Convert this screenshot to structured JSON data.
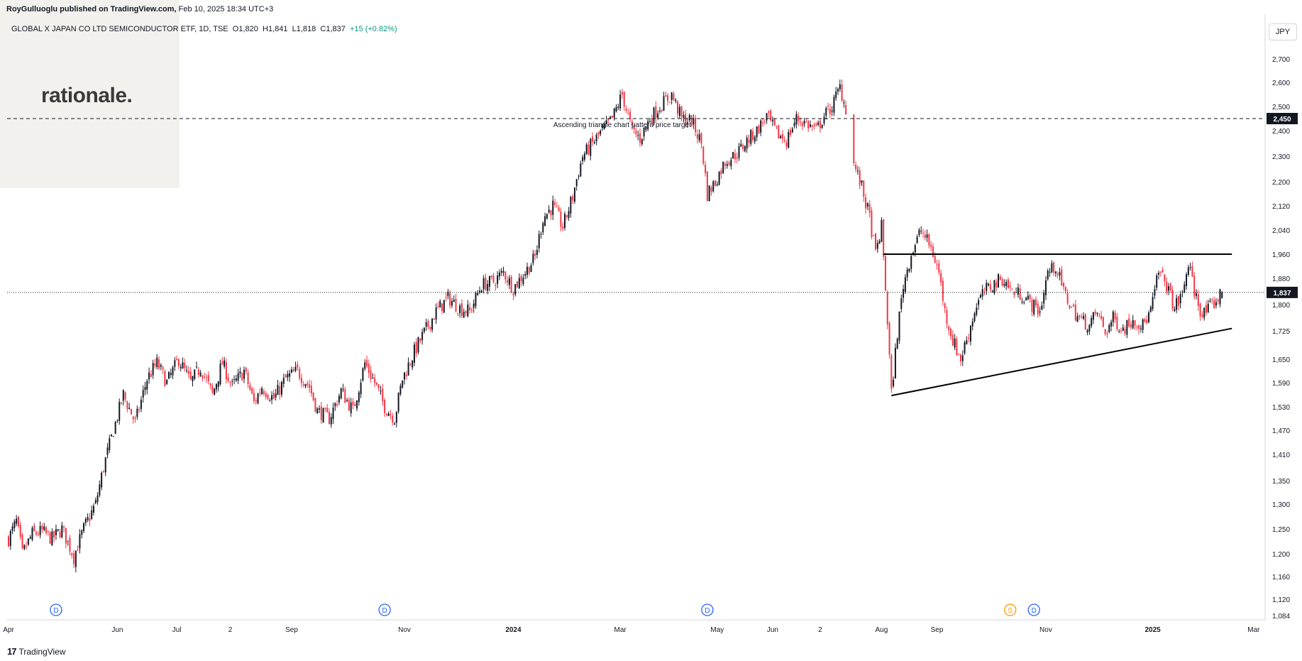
{
  "header": {
    "publisher": "RoyGulluoglu published on TradingView.com,",
    "datetime": "Feb 10, 2025 18:34 UTC+3"
  },
  "legend": {
    "symbol": "GLOBAL X JAPAN CO LTD SEMICONDUCTOR ETF",
    "interval": "1D",
    "exchange": "TSE",
    "open": "O1,820",
    "high": "H1,841",
    "low": "L1,818",
    "close": "C1,837",
    "change": "+15 (+0.82%)"
  },
  "logo": {
    "text": "rationale."
  },
  "currency": "JPY",
  "footer": {
    "brand": "TradingView"
  },
  "colors": {
    "up": "#131722",
    "down": "#f23645",
    "event_blue": "#2962ff",
    "event_orange": "#ff9800"
  },
  "chart_data": {
    "type": "candlestick",
    "interval": "1D",
    "ylim": [
      1084,
      2750
    ],
    "y_ticks": [
      "2,700",
      "2,600",
      "2,500",
      "2,400",
      "2,300",
      "2,200",
      "2,120",
      "2,040",
      "1,960",
      "1,880",
      "1,800",
      "1,725",
      "1,650",
      "1,590",
      "1,530",
      "1,470",
      "1,410",
      "1,350",
      "1,300",
      "1,250",
      "1,200",
      "1,160",
      "1,120",
      "1,084"
    ],
    "x_ticks": [
      {
        "label": "Apr",
        "d": 0
      },
      {
        "label": "Jun",
        "d": 55
      },
      {
        "label": "Jul",
        "d": 85
      },
      {
        "label": "2",
        "d": 112
      },
      {
        "label": "Sep",
        "d": 143
      },
      {
        "label": "Nov",
        "d": 200
      },
      {
        "label": "2024",
        "d": 255
      },
      {
        "label": "Mar",
        "d": 309
      },
      {
        "label": "May",
        "d": 358
      },
      {
        "label": "Jun",
        "d": 386
      },
      {
        "label": "2",
        "d": 410
      },
      {
        "label": "Aug",
        "d": 441
      },
      {
        "label": "Sep",
        "d": 469
      },
      {
        "label": "Nov",
        "d": 524
      },
      {
        "label": "2025",
        "d": 578
      },
      {
        "label": "Mar",
        "d": 629
      }
    ],
    "price_labels": [
      {
        "value": 2450,
        "text": "2,450"
      },
      {
        "value": 1837,
        "text": "1,837"
      }
    ],
    "target_line": {
      "value": 2450,
      "label": "Ascending triangle chart pattern price target"
    },
    "resistance_line": {
      "d0": 442,
      "d1": 618,
      "value": 1960
    },
    "support_line": {
      "d0": 446,
      "v0": 1558,
      "d1": 618,
      "v1": 1732
    },
    "event_markers": [
      {
        "d": 24,
        "label": "D"
      },
      {
        "d": 190,
        "label": "D"
      },
      {
        "d": 353,
        "label": "D"
      },
      {
        "d": 506,
        "label": "S"
      },
      {
        "d": 518,
        "label": "D"
      }
    ],
    "ohlc_anchors": [
      [
        0,
        1230
      ],
      [
        4,
        1265
      ],
      [
        7,
        1200
      ],
      [
        12,
        1240
      ],
      [
        17,
        1245
      ],
      [
        22,
        1230
      ],
      [
        27,
        1250
      ],
      [
        33,
        1195
      ],
      [
        38,
        1250
      ],
      [
        44,
        1300
      ],
      [
        48,
        1380
      ],
      [
        53,
        1470
      ],
      [
        58,
        1560
      ],
      [
        64,
        1490
      ],
      [
        70,
        1600
      ],
      [
        75,
        1640
      ],
      [
        80,
        1590
      ],
      [
        86,
        1650
      ],
      [
        92,
        1590
      ],
      [
        97,
        1630
      ],
      [
        103,
        1560
      ],
      [
        108,
        1640
      ],
      [
        113,
        1580
      ],
      [
        119,
        1620
      ],
      [
        124,
        1540
      ],
      [
        128,
        1580
      ],
      [
        134,
        1550
      ],
      [
        140,
        1600
      ],
      [
        146,
        1620
      ],
      [
        152,
        1580
      ],
      [
        156,
        1520
      ],
      [
        162,
        1500
      ],
      [
        168,
        1570
      ],
      [
        174,
        1520
      ],
      [
        180,
        1640
      ],
      [
        185,
        1590
      ],
      [
        190,
        1530
      ],
      [
        195,
        1500
      ],
      [
        199,
        1600
      ],
      [
        205,
        1670
      ],
      [
        210,
        1720
      ],
      [
        216,
        1780
      ],
      [
        222,
        1820
      ],
      [
        228,
        1790
      ],
      [
        233,
        1780
      ],
      [
        239,
        1860
      ],
      [
        245,
        1870
      ],
      [
        250,
        1900
      ],
      [
        255,
        1850
      ],
      [
        261,
        1900
      ],
      [
        266,
        1950
      ],
      [
        270,
        2080
      ],
      [
        275,
        2120
      ],
      [
        280,
        2050
      ],
      [
        285,
        2150
      ],
      [
        290,
        2300
      ],
      [
        295,
        2350
      ],
      [
        300,
        2400
      ],
      [
        305,
        2450
      ],
      [
        310,
        2550
      ],
      [
        315,
        2400
      ],
      [
        319,
        2370
      ],
      [
        324,
        2450
      ],
      [
        329,
        2500
      ],
      [
        335,
        2550
      ],
      [
        340,
        2450
      ],
      [
        345,
        2440
      ],
      [
        350,
        2350
      ],
      [
        353,
        2160
      ],
      [
        357,
        2200
      ],
      [
        362,
        2280
      ],
      [
        368,
        2310
      ],
      [
        373,
        2360
      ],
      [
        378,
        2400
      ],
      [
        383,
        2460
      ],
      [
        388,
        2390
      ],
      [
        393,
        2360
      ],
      [
        398,
        2450
      ],
      [
        403,
        2430
      ],
      [
        408,
        2400
      ],
      [
        412,
        2460
      ],
      [
        416,
        2500
      ],
      [
        420,
        2580
      ],
      [
        423,
        2490
      ],
      [
        427,
        2270
      ],
      [
        431,
        2180
      ],
      [
        435,
        2080
      ],
      [
        438,
        1960
      ],
      [
        441,
        2050
      ],
      [
        444,
        1750
      ],
      [
        446,
        1560
      ],
      [
        449,
        1720
      ],
      [
        452,
        1860
      ],
      [
        456,
        1960
      ],
      [
        461,
        2040
      ],
      [
        466,
        1980
      ],
      [
        470,
        1900
      ],
      [
        473,
        1780
      ],
      [
        477,
        1700
      ],
      [
        481,
        1650
      ],
      [
        485,
        1720
      ],
      [
        489,
        1800
      ],
      [
        493,
        1840
      ],
      [
        497,
        1860
      ],
      [
        502,
        1880
      ],
      [
        507,
        1840
      ],
      [
        512,
        1830
      ],
      [
        517,
        1800
      ],
      [
        521,
        1780
      ],
      [
        525,
        1900
      ],
      [
        529,
        1920
      ],
      [
        533,
        1840
      ],
      [
        537,
        1790
      ],
      [
        541,
        1760
      ],
      [
        546,
        1740
      ],
      [
        550,
        1780
      ],
      [
        554,
        1720
      ],
      [
        558,
        1760
      ],
      [
        563,
        1730
      ],
      [
        568,
        1760
      ],
      [
        573,
        1740
      ],
      [
        577,
        1780
      ],
      [
        581,
        1900
      ],
      [
        585,
        1860
      ],
      [
        589,
        1790
      ],
      [
        593,
        1830
      ],
      [
        596,
        1930
      ],
      [
        599,
        1840
      ],
      [
        603,
        1770
      ],
      [
        607,
        1790
      ],
      [
        611,
        1820
      ],
      [
        613,
        1837
      ]
    ]
  }
}
